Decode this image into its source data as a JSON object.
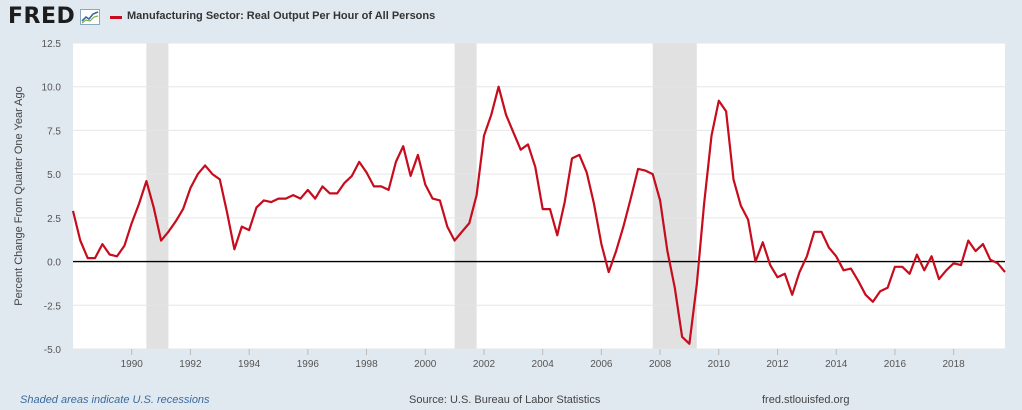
{
  "header": {
    "logo_text": "FRED",
    "legend_label": "Manufacturing Sector: Real Output Per Hour of All Persons",
    "series_color": "#c70c1d"
  },
  "footer": {
    "recession_note": "Shaded areas indicate U.S. recessions",
    "source": "Source: U.S. Bureau of Labor Statistics",
    "site": "fred.stlouisfed.org"
  },
  "chart_data": {
    "type": "line",
    "title": "",
    "xlabel": "",
    "ylabel": "Percent Change From Quarter One Year Ago",
    "xlim": [
      1988,
      2019.75
    ],
    "ylim": [
      -5.0,
      12.5
    ],
    "y_ticks": [
      "-5.0",
      "-2.5",
      "0.0",
      "2.5",
      "5.0",
      "7.5",
      "10.0",
      "12.5"
    ],
    "x_ticks": [
      "1990",
      "1992",
      "1994",
      "1996",
      "1998",
      "2000",
      "2002",
      "2004",
      "2006",
      "2008",
      "2010",
      "2012",
      "2014",
      "2016",
      "2018"
    ],
    "grid": true,
    "zero_line": true,
    "recessions": [
      [
        1990.5,
        1991.25
      ],
      [
        2001.0,
        2001.75
      ],
      [
        2007.75,
        2009.25
      ]
    ],
    "series": [
      {
        "color": "#c70c1d",
        "x": [
          1988.0,
          1988.25,
          1988.5,
          1988.75,
          1989.0,
          1989.25,
          1989.5,
          1989.75,
          1990.0,
          1990.25,
          1990.5,
          1990.75,
          1991.0,
          1991.25,
          1991.5,
          1991.75,
          1992.0,
          1992.25,
          1992.5,
          1992.75,
          1993.0,
          1993.25,
          1993.5,
          1993.75,
          1994.0,
          1994.25,
          1994.5,
          1994.75,
          1995.0,
          1995.25,
          1995.5,
          1995.75,
          1996.0,
          1996.25,
          1996.5,
          1996.75,
          1997.0,
          1997.25,
          1997.5,
          1997.75,
          1998.0,
          1998.25,
          1998.5,
          1998.75,
          1999.0,
          1999.25,
          1999.5,
          1999.75,
          2000.0,
          2000.25,
          2000.5,
          2000.75,
          2001.0,
          2001.25,
          2001.5,
          2001.75,
          2002.0,
          2002.25,
          2002.5,
          2002.75,
          2003.0,
          2003.25,
          2003.5,
          2003.75,
          2004.0,
          2004.25,
          2004.5,
          2004.75,
          2005.0,
          2005.25,
          2005.5,
          2005.75,
          2006.0,
          2006.25,
          2006.5,
          2006.75,
          2007.0,
          2007.25,
          2007.5,
          2007.75,
          2008.0,
          2008.25,
          2008.5,
          2008.75,
          2009.0,
          2009.25,
          2009.5,
          2009.75,
          2010.0,
          2010.25,
          2010.5,
          2010.75,
          2011.0,
          2011.25,
          2011.5,
          2011.75,
          2012.0,
          2012.25,
          2012.5,
          2012.75,
          2013.0,
          2013.25,
          2013.5,
          2013.75,
          2014.0,
          2014.25,
          2014.5,
          2014.75,
          2015.0,
          2015.25,
          2015.5,
          2015.75,
          2016.0,
          2016.25,
          2016.5,
          2016.75,
          2017.0,
          2017.25,
          2017.5,
          2017.75,
          2018.0,
          2018.25,
          2018.5,
          2018.75,
          2019.0,
          2019.25,
          2019.5,
          2019.75
        ],
        "values": [
          2.9,
          1.2,
          0.2,
          0.2,
          1.0,
          0.4,
          0.3,
          0.9,
          2.2,
          3.3,
          4.6,
          3.1,
          1.2,
          1.7,
          2.3,
          3.0,
          4.2,
          5.0,
          5.5,
          5.0,
          4.7,
          2.8,
          0.7,
          2.0,
          1.8,
          3.1,
          3.5,
          3.4,
          3.6,
          3.6,
          3.8,
          3.6,
          4.1,
          3.6,
          4.3,
          3.9,
          3.9,
          4.5,
          4.9,
          5.7,
          5.1,
          4.3,
          4.3,
          4.1,
          5.7,
          6.6,
          4.9,
          6.1,
          4.4,
          3.6,
          3.5,
          2.0,
          1.2,
          1.7,
          2.2,
          3.8,
          7.2,
          8.4,
          10.0,
          8.4,
          7.4,
          6.4,
          6.7,
          5.4,
          3.0,
          3.0,
          1.5,
          3.4,
          5.9,
          6.1,
          5.1,
          3.3,
          1.0,
          -0.6,
          0.6,
          2.0,
          3.6,
          5.3,
          5.2,
          5.0,
          3.5,
          0.6,
          -1.5,
          -4.3,
          -4.7,
          -1.3,
          3.3,
          7.2,
          9.2,
          8.6,
          4.7,
          3.2,
          2.4,
          0.0,
          1.1,
          -0.2,
          -0.9,
          -0.7,
          -1.9,
          -0.6,
          0.3,
          1.7,
          1.7,
          0.8,
          0.3,
          -0.5,
          -0.4,
          -1.1,
          -1.9,
          -2.3,
          -1.7,
          -1.5,
          -0.3,
          -0.3,
          -0.7,
          0.4,
          -0.5,
          0.3,
          -1.0,
          -0.5,
          -0.1,
          -0.2,
          1.2,
          0.6,
          1.0,
          0.1,
          -0.1,
          -0.6
        ]
      }
    ]
  }
}
